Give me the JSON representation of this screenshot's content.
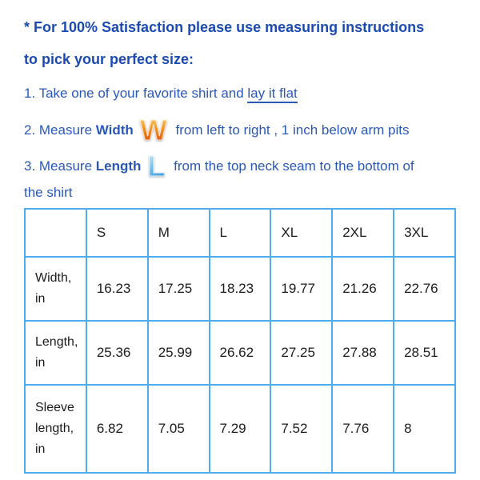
{
  "header": {
    "line1": "* For 100% Satisfaction please use measuring instructions",
    "line2": "to pick your perfect size:"
  },
  "steps": {
    "step1": {
      "text": "1. Take one of your favorite shirt and ",
      "underlined": "lay it flat"
    },
    "step2": {
      "pre": "2. Measure ",
      "keyword": "Width",
      "icon_glyph": "W",
      "post": " from left to right , 1 inch below arm pits"
    },
    "step3": {
      "pre": "3. Measure ",
      "keyword": "Length",
      "icon_glyph": "L",
      "post": " from the top neck seam to the bottom of",
      "wrap_line": "the shirt"
    }
  },
  "size_table": {
    "columns": [
      "",
      "S",
      "M",
      "L",
      "XL",
      "2XL",
      "3XL"
    ],
    "rows": [
      {
        "label": "Width, in",
        "values": [
          "16.23",
          "17.25",
          "18.23",
          "19.77",
          "21.26",
          "22.76"
        ]
      },
      {
        "label": "Length, in",
        "values": [
          "25.36",
          "25.99",
          "26.62",
          "27.25",
          "27.88",
          "28.51"
        ]
      },
      {
        "label": "Sleeve length, in",
        "values": [
          "6.82",
          "7.05",
          "7.29",
          "7.52",
          "7.76",
          "8"
        ]
      }
    ]
  },
  "colors": {
    "title_blue": "#1b4bb2",
    "body_blue": "#2a58b8",
    "table_border_blue": "#4facee",
    "table_text": "#1c1c1c",
    "w_icon_gradient_top": "#fcd97c",
    "w_icon_gradient_mid": "#f59022",
    "w_icon_gradient_bottom": "#d9480e",
    "l_icon_gradient_top": "#d8effc",
    "l_icon_gradient_mid": "#6cbcec",
    "l_icon_gradient_bottom": "#2b8fd3"
  }
}
